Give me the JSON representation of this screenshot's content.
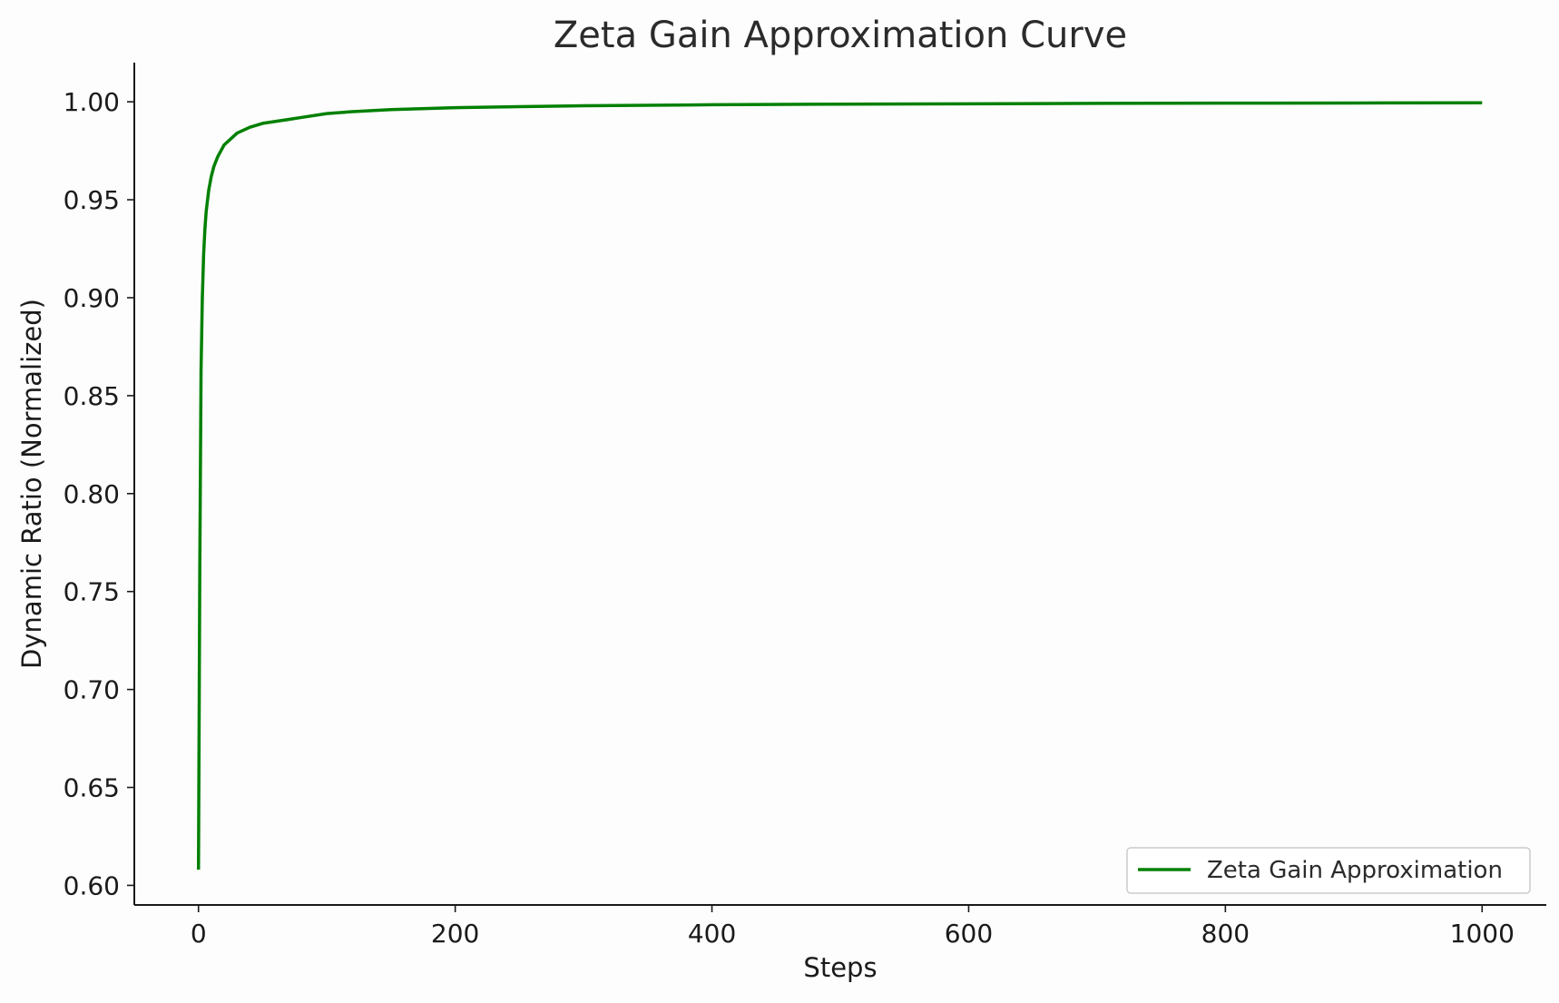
{
  "chart_data": {
    "type": "line",
    "title": "Zeta Gain Approximation Curve",
    "xlabel": "Steps",
    "ylabel": "Dynamic Ratio (Normalized)",
    "xlim": [
      -50,
      1050
    ],
    "ylim": [
      0.59,
      1.02
    ],
    "xticks": [
      0,
      200,
      400,
      600,
      800,
      1000
    ],
    "xtick_labels": [
      "0",
      "200",
      "400",
      "600",
      "800",
      "1000"
    ],
    "yticks": [
      0.6,
      0.65,
      0.7,
      0.75,
      0.8,
      0.85,
      0.9,
      0.95,
      1.0
    ],
    "ytick_labels": [
      "0.60",
      "0.65",
      "0.70",
      "0.75",
      "0.80",
      "0.85",
      "0.90",
      "0.95",
      "1.00"
    ],
    "grid": false,
    "legend_position": "lower-right",
    "series": [
      {
        "name": "Zeta Gain Approximation",
        "color": "#008000",
        "x": [
          0,
          1,
          2,
          3,
          4,
          5,
          6,
          8,
          10,
          12,
          15,
          20,
          25,
          30,
          40,
          50,
          60,
          70,
          80,
          100,
          120,
          150,
          200,
          250,
          300,
          400,
          500,
          600,
          700,
          800,
          900,
          1000
        ],
        "y": [
          0.608,
          0.76,
          0.863,
          0.9,
          0.922,
          0.935,
          0.944,
          0.955,
          0.962,
          0.967,
          0.972,
          0.978,
          0.981,
          0.984,
          0.987,
          0.989,
          0.99,
          0.991,
          0.992,
          0.994,
          0.995,
          0.996,
          0.997,
          0.9975,
          0.998,
          0.9985,
          0.9988,
          0.999,
          0.9992,
          0.9993,
          0.9994,
          0.9995
        ]
      }
    ]
  }
}
